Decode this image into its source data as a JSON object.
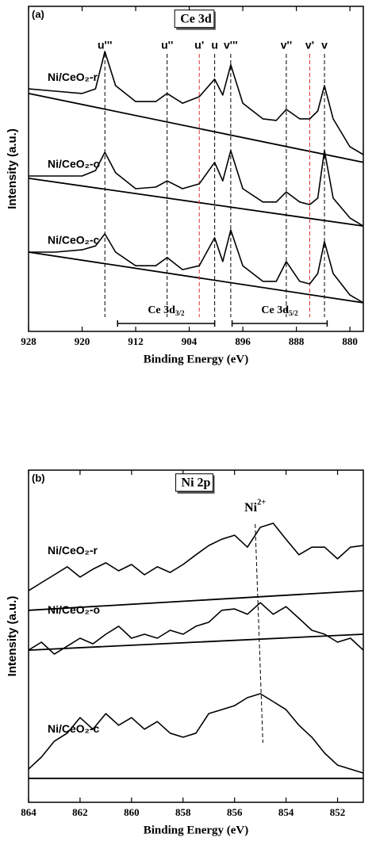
{
  "chart_data": [
    {
      "type": "line",
      "panel_label": "(a)",
      "title": "Ce 3d",
      "x_label": "Binding Energy (eV)",
      "y_label": "Intensity (a.u.)",
      "xlim": [
        928,
        878
      ],
      "xticks": [
        928,
        920,
        912,
        904,
        896,
        888,
        880
      ],
      "ylim": [
        0,
        100
      ],
      "x": [
        928,
        924,
        920,
        918,
        916.6,
        915,
        912,
        909,
        907.3,
        905,
        902.5,
        900.2,
        899,
        897.8,
        896,
        893,
        891,
        889.5,
        887.5,
        886,
        884.8,
        883.8,
        882.5,
        880,
        878
      ],
      "series": [
        {
          "name": "Ni/CeO₂-r",
          "color": "#000000",
          "values": [
            74.6,
            73.9,
            73.2,
            74.6,
            86.1,
            75.6,
            70.7,
            70.7,
            73.2,
            70.2,
            72.2,
            77.6,
            72.7,
            82.0,
            70.2,
            65.4,
            64.9,
            68.3,
            65.4,
            65.4,
            67.8,
            75.6,
            65.4,
            56.8,
            54.4
          ]
        },
        {
          "name": "Ni/CeO₂-o",
          "color": "#000000",
          "values": [
            47.8,
            47.8,
            47.8,
            49.5,
            55.1,
            48.8,
            43.9,
            44.4,
            46.3,
            43.9,
            45.4,
            52.0,
            46.3,
            55.6,
            43.9,
            39.8,
            39.8,
            42.9,
            39.8,
            39.0,
            41.0,
            55.6,
            41.0,
            34.9,
            32.4
          ]
        },
        {
          "name": "Ni/CeO₂-c",
          "color": "#000000",
          "values": [
            24.4,
            24.4,
            25.1,
            26.3,
            30.0,
            24.4,
            20.2,
            20.2,
            22.7,
            19.0,
            20.2,
            28.8,
            21.5,
            31.2,
            20.2,
            15.4,
            15.4,
            21.5,
            15.4,
            14.6,
            17.8,
            27.6,
            17.8,
            11.2,
            8.8
          ]
        }
      ],
      "baselines": [
        {
          "x": [
            928,
            878
          ],
          "values": [
            73.2,
            52.0
          ]
        },
        {
          "x": [
            928,
            878
          ],
          "values": [
            47.1,
            32.4
          ]
        },
        {
          "x": [
            928,
            878
          ],
          "values": [
            24.4,
            8.8
          ]
        }
      ],
      "peaks": [
        {
          "label": "u'''",
          "x": 916.6,
          "color": "#000000"
        },
        {
          "label": "u''",
          "x": 907.3,
          "color": "#000000"
        },
        {
          "label": "u'",
          "x": 902.5,
          "color": "#e03030"
        },
        {
          "label": "u",
          "x": 900.2,
          "color": "#000000"
        },
        {
          "label": "v'''",
          "x": 897.8,
          "color": "#000000"
        },
        {
          "label": "v''",
          "x": 889.5,
          "color": "#000000"
        },
        {
          "label": "v'",
          "x": 886,
          "color": "#e03030"
        },
        {
          "label": "v",
          "x": 883.8,
          "color": "#000000"
        }
      ],
      "ranges": [
        {
          "text": "Ce 3d",
          "sub": "3/2",
          "x": [
            914.7,
            900.2
          ]
        },
        {
          "text": "Ce 3d",
          "sub": "5/2",
          "x": [
            897.6,
            883.4
          ]
        }
      ]
    },
    {
      "type": "line",
      "panel_label": "(b)",
      "title": "Ni 2p",
      "x_label": "Binding Energy (eV)",
      "y_label": "Intensity (a.u.)",
      "xlim": [
        864,
        851
      ],
      "xticks": [
        864,
        862,
        860,
        858,
        856,
        854,
        852
      ],
      "ylim": [
        0,
        100
      ],
      "x": [
        864,
        863.5,
        863,
        862.5,
        862,
        861.5,
        861,
        860.5,
        860,
        859.5,
        859,
        858.5,
        858,
        857.5,
        857,
        856.5,
        856,
        855.5,
        855,
        854.5,
        854,
        853.5,
        853,
        852.5,
        852,
        851.5,
        851
      ],
      "series": [
        {
          "name": "Ni/CeO₂-r",
          "color": "#000000",
          "values": [
            63.7,
            66.1,
            68.5,
            70.9,
            67.8,
            70.2,
            72.1,
            69.7,
            71.6,
            68.5,
            70.9,
            69.2,
            71.6,
            74.5,
            77.3,
            79.2,
            80.4,
            76.8,
            82.8,
            84.0,
            79.2,
            74.5,
            76.8,
            76.8,
            73.3,
            76.8,
            77.3
          ]
        },
        {
          "name": "Ni/CeO₂-o",
          "color": "#000000",
          "values": [
            45.8,
            48.2,
            44.6,
            47.0,
            49.4,
            47.7,
            50.6,
            53.0,
            49.4,
            50.6,
            49.4,
            51.8,
            50.6,
            53.0,
            54.2,
            57.8,
            58.2,
            56.6,
            60.1,
            56.6,
            58.9,
            55.4,
            51.8,
            50.6,
            48.2,
            49.4,
            45.8
          ]
        },
        {
          "name": "Ni/CeO₂-c",
          "color": "#000000",
          "values": [
            10.0,
            13.6,
            18.4,
            20.8,
            25.5,
            22.0,
            26.7,
            23.2,
            25.5,
            22.0,
            24.3,
            20.8,
            19.6,
            20.8,
            26.7,
            27.9,
            29.1,
            31.5,
            32.7,
            30.3,
            27.9,
            23.2,
            19.6,
            14.8,
            11.2,
            10.0,
            8.8
          ]
        }
      ],
      "baselines": [
        {
          "x": [
            864,
            851
          ],
          "values": [
            57.8,
            63.7
          ]
        },
        {
          "x": [
            864,
            851
          ],
          "values": [
            45.8,
            50.6
          ]
        },
        {
          "x": [
            864,
            851
          ],
          "values": [
            7.2,
            7.2
          ]
        }
      ],
      "annotation": {
        "text": "Ni",
        "sup": "2+",
        "x": [
          855.2,
          854.9
        ]
      }
    }
  ]
}
